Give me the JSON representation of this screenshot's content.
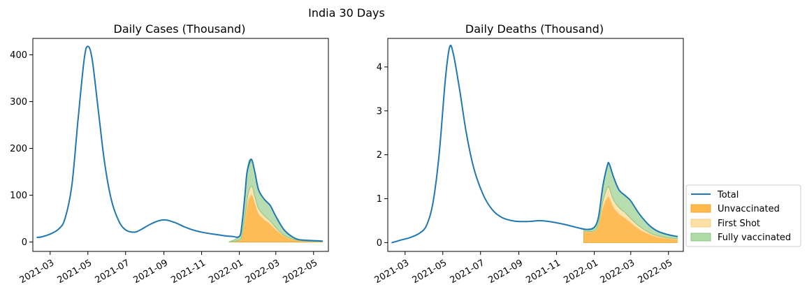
{
  "suptitle": "India 30 Days",
  "legend": {
    "entries": [
      "Total",
      "Unvaccinated",
      "First Shot",
      "Fully vaccinated"
    ],
    "placement": "outside-right",
    "colors": [
      "#1f77b4",
      "#ffb84d",
      "#fde0a6",
      "#b0d9a8"
    ]
  },
  "colors": {
    "total": "#1f77b4",
    "unvaccinated": "#ffb84d",
    "first_shot": "#fde0a6",
    "fully_vaccinated": "#b0d9a8",
    "stack_edge": "#f0a830"
  },
  "chart_data": [
    {
      "type": "area",
      "title": "Daily Cases (Thousand)",
      "xlabel": "",
      "ylabel": "",
      "xlim": [
        "2021-02-01",
        "2022-05-25"
      ],
      "ylim": [
        -20,
        435
      ],
      "x_ticks": [
        "2021-03",
        "2021-05",
        "2021-07",
        "2021-09",
        "2021-11",
        "2022-01",
        "2022-03",
        "2022-05"
      ],
      "y_ticks": [
        0,
        100,
        200,
        300,
        400
      ],
      "grid": false,
      "series": [
        {
          "name": "Total",
          "style": "line",
          "points": [
            [
              "2021-02-08",
              10
            ],
            [
              "2021-02-15",
              11
            ],
            [
              "2021-03-01",
              17
            ],
            [
              "2021-03-15",
              28
            ],
            [
              "2021-03-25",
              50
            ],
            [
              "2021-04-05",
              120
            ],
            [
              "2021-04-15",
              260
            ],
            [
              "2021-04-25",
              390
            ],
            [
              "2021-05-01",
              418
            ],
            [
              "2021-05-08",
              390
            ],
            [
              "2021-05-18",
              280
            ],
            [
              "2021-05-28",
              170
            ],
            [
              "2021-06-08",
              90
            ],
            [
              "2021-06-20",
              45
            ],
            [
              "2021-07-01",
              26
            ],
            [
              "2021-07-15",
              21
            ],
            [
              "2021-07-25",
              26
            ],
            [
              "2021-08-10",
              38
            ],
            [
              "2021-08-25",
              46
            ],
            [
              "2021-09-05",
              47
            ],
            [
              "2021-09-20",
              41
            ],
            [
              "2021-10-05",
              32
            ],
            [
              "2021-10-20",
              25
            ],
            [
              "2021-11-05",
              20
            ],
            [
              "2021-11-20",
              17
            ],
            [
              "2021-12-05",
              14
            ],
            [
              "2021-12-20",
              12
            ],
            [
              "2022-01-01",
              12
            ],
            [
              "2022-01-05",
              35
            ],
            [
              "2022-01-10",
              100
            ],
            [
              "2022-01-13",
              145
            ],
            [
              "2022-01-17",
              168
            ],
            [
              "2022-01-21",
              176
            ],
            [
              "2022-01-26",
              150
            ],
            [
              "2022-02-01",
              112
            ],
            [
              "2022-02-10",
              92
            ],
            [
              "2022-02-20",
              78
            ],
            [
              "2022-03-01",
              55
            ],
            [
              "2022-03-15",
              25
            ],
            [
              "2022-04-01",
              8
            ],
            [
              "2022-04-15",
              4
            ],
            [
              "2022-05-01",
              3
            ],
            [
              "2022-05-15",
              2
            ]
          ]
        },
        {
          "name": "Unvaccinated",
          "style": "stack",
          "points": [
            [
              "2021-12-15",
              0
            ],
            [
              "2022-01-01",
              3
            ],
            [
              "2022-01-05",
              10
            ],
            [
              "2022-01-10",
              45
            ],
            [
              "2022-01-15",
              85
            ],
            [
              "2022-01-21",
              100
            ],
            [
              "2022-01-26",
              82
            ],
            [
              "2022-02-01",
              60
            ],
            [
              "2022-02-10",
              48
            ],
            [
              "2022-02-20",
              38
            ],
            [
              "2022-03-01",
              26
            ],
            [
              "2022-03-15",
              12
            ],
            [
              "2022-04-01",
              4
            ],
            [
              "2022-04-15",
              2
            ],
            [
              "2022-05-01",
              1
            ],
            [
              "2022-05-15",
              1
            ]
          ]
        },
        {
          "name": "First Shot",
          "style": "stack",
          "points": [
            [
              "2021-12-15",
              0
            ],
            [
              "2022-01-01",
              1
            ],
            [
              "2022-01-05",
              3
            ],
            [
              "2022-01-10",
              10
            ],
            [
              "2022-01-15",
              17
            ],
            [
              "2022-01-21",
              20
            ],
            [
              "2022-01-26",
              16
            ],
            [
              "2022-02-01",
              12
            ],
            [
              "2022-02-10",
              9
            ],
            [
              "2022-02-20",
              7
            ],
            [
              "2022-03-01",
              5
            ],
            [
              "2022-03-15",
              2
            ],
            [
              "2022-04-01",
              1
            ],
            [
              "2022-04-15",
              0.5
            ],
            [
              "2022-05-01",
              0.3
            ],
            [
              "2022-05-15",
              0.3
            ]
          ]
        },
        {
          "name": "Fully vaccinated",
          "style": "stack",
          "points": [
            [
              "2021-12-15",
              0
            ],
            [
              "2022-01-01",
              8
            ],
            [
              "2022-01-05",
              22
            ],
            [
              "2022-01-10",
              45
            ],
            [
              "2022-01-15",
              64
            ],
            [
              "2022-01-21",
              56
            ],
            [
              "2022-01-26",
              52
            ],
            [
              "2022-02-01",
              40
            ],
            [
              "2022-02-10",
              35
            ],
            [
              "2022-02-20",
              33
            ],
            [
              "2022-03-01",
              24
            ],
            [
              "2022-03-15",
              11
            ],
            [
              "2022-04-01",
              3
            ],
            [
              "2022-04-15",
              1.5
            ],
            [
              "2022-05-01",
              1.7
            ],
            [
              "2022-05-15",
              0.7
            ]
          ]
        }
      ]
    },
    {
      "type": "area",
      "title": "Daily Deaths (Thousand)",
      "xlabel": "",
      "ylabel": "",
      "xlim": [
        "2021-02-01",
        "2022-05-25"
      ],
      "ylim": [
        -0.2,
        4.65
      ],
      "x_ticks": [
        "2021-03",
        "2021-05",
        "2021-07",
        "2021-09",
        "2021-11",
        "2022-01",
        "2022-03",
        "2022-05"
      ],
      "y_ticks": [
        0,
        1,
        2,
        3,
        4
      ],
      "grid": false,
      "series": [
        {
          "name": "Total",
          "style": "line",
          "points": [
            [
              "2021-02-08",
              0.0
            ],
            [
              "2021-02-20",
              0.05
            ],
            [
              "2021-03-10",
              0.12
            ],
            [
              "2021-03-25",
              0.22
            ],
            [
              "2021-04-05",
              0.4
            ],
            [
              "2021-04-15",
              0.9
            ],
            [
              "2021-04-25",
              2.0
            ],
            [
              "2021-05-05",
              3.7
            ],
            [
              "2021-05-12",
              4.45
            ],
            [
              "2021-05-18",
              4.3
            ],
            [
              "2021-05-28",
              3.5
            ],
            [
              "2021-06-08",
              2.5
            ],
            [
              "2021-06-20",
              1.7
            ],
            [
              "2021-07-05",
              1.1
            ],
            [
              "2021-07-20",
              0.75
            ],
            [
              "2021-08-05",
              0.57
            ],
            [
              "2021-08-25",
              0.49
            ],
            [
              "2021-09-15",
              0.48
            ],
            [
              "2021-10-05",
              0.5
            ],
            [
              "2021-10-25",
              0.47
            ],
            [
              "2021-11-15",
              0.41
            ],
            [
              "2021-12-05",
              0.34
            ],
            [
              "2021-12-20",
              0.3
            ],
            [
              "2022-01-01",
              0.35
            ],
            [
              "2022-01-08",
              0.6
            ],
            [
              "2022-01-15",
              1.3
            ],
            [
              "2022-01-22",
              1.75
            ],
            [
              "2022-01-25",
              1.8
            ],
            [
              "2022-02-01",
              1.5
            ],
            [
              "2022-02-10",
              1.2
            ],
            [
              "2022-02-20",
              1.07
            ],
            [
              "2022-03-01",
              0.95
            ],
            [
              "2022-03-15",
              0.65
            ],
            [
              "2022-04-01",
              0.38
            ],
            [
              "2022-04-15",
              0.25
            ],
            [
              "2022-05-01",
              0.18
            ],
            [
              "2022-05-15",
              0.14
            ]
          ]
        },
        {
          "name": "Unvaccinated",
          "style": "stack",
          "points": [
            [
              "2021-12-15",
              0.25
            ],
            [
              "2022-01-01",
              0.25
            ],
            [
              "2022-01-08",
              0.4
            ],
            [
              "2022-01-15",
              0.8
            ],
            [
              "2022-01-22",
              1.02
            ],
            [
              "2022-01-25",
              1.02
            ],
            [
              "2022-02-01",
              0.8
            ],
            [
              "2022-02-10",
              0.65
            ],
            [
              "2022-02-20",
              0.55
            ],
            [
              "2022-03-01",
              0.45
            ],
            [
              "2022-03-15",
              0.3
            ],
            [
              "2022-04-01",
              0.18
            ],
            [
              "2022-04-15",
              0.12
            ],
            [
              "2022-05-01",
              0.09
            ],
            [
              "2022-05-15",
              0.07
            ]
          ]
        },
        {
          "name": "First Shot",
          "style": "stack",
          "points": [
            [
              "2021-12-15",
              0.01
            ],
            [
              "2022-01-01",
              0.02
            ],
            [
              "2022-01-08",
              0.05
            ],
            [
              "2022-01-15",
              0.15
            ],
            [
              "2022-01-22",
              0.23
            ],
            [
              "2022-01-25",
              0.23
            ],
            [
              "2022-02-01",
              0.18
            ],
            [
              "2022-02-10",
              0.15
            ],
            [
              "2022-02-20",
              0.13
            ],
            [
              "2022-03-01",
              0.1
            ],
            [
              "2022-03-15",
              0.07
            ],
            [
              "2022-04-01",
              0.04
            ],
            [
              "2022-04-15",
              0.03
            ],
            [
              "2022-05-01",
              0.02
            ],
            [
              "2022-05-15",
              0.02
            ]
          ]
        },
        {
          "name": "Fully vaccinated",
          "style": "stack",
          "points": [
            [
              "2021-12-15",
              0.04
            ],
            [
              "2022-01-01",
              0.08
            ],
            [
              "2022-01-08",
              0.15
            ],
            [
              "2022-01-15",
              0.35
            ],
            [
              "2022-01-22",
              0.5
            ],
            [
              "2022-01-25",
              0.55
            ],
            [
              "2022-02-01",
              0.52
            ],
            [
              "2022-02-10",
              0.4
            ],
            [
              "2022-02-20",
              0.39
            ],
            [
              "2022-03-01",
              0.4
            ],
            [
              "2022-03-15",
              0.28
            ],
            [
              "2022-04-01",
              0.16
            ],
            [
              "2022-04-15",
              0.1
            ],
            [
              "2022-05-01",
              0.07
            ],
            [
              "2022-05-15",
              0.05
            ]
          ]
        }
      ]
    }
  ]
}
